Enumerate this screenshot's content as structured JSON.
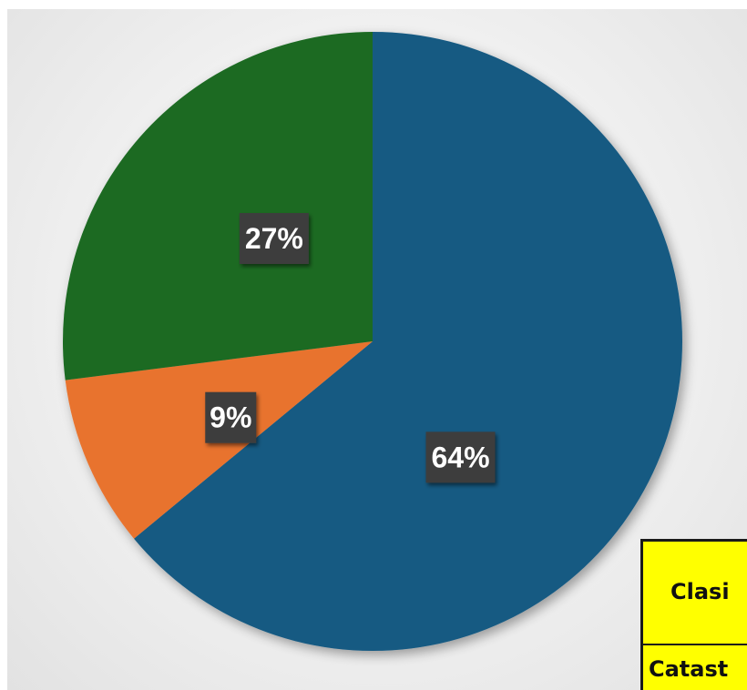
{
  "chart_data": {
    "type": "pie",
    "slices": [
      {
        "value": 64,
        "label": "64%",
        "color": "#165a82"
      },
      {
        "value": 9,
        "label": "9%",
        "color": "#e8732e"
      },
      {
        "value": 27,
        "label": "27%",
        "color": "#1b6b24"
      }
    ],
    "start_angle_deg": 0,
    "direction": "clockwise",
    "label_style": "dark-box-white-text"
  },
  "table": {
    "header_text": "Clasi",
    "row_text": "Catast",
    "background_color": "#ffff00"
  }
}
